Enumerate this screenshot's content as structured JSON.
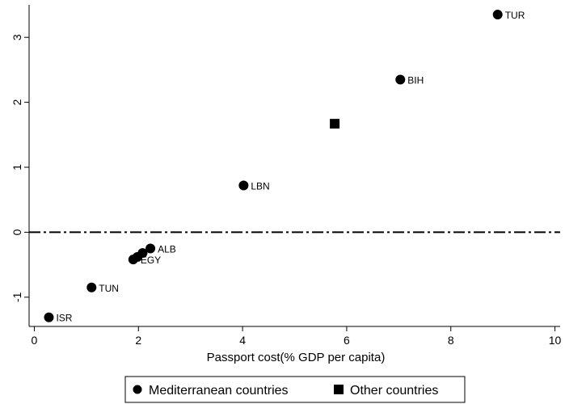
{
  "chart_data": {
    "type": "scatter",
    "xlabel": "Passport cost(% GDP per capita)",
    "ylabel": "",
    "xlim": [
      -0.1,
      10.1
    ],
    "ylim": [
      -1.45,
      3.5
    ],
    "xticks": [
      0,
      2,
      4,
      6,
      8,
      10
    ],
    "yticks": [
      -1,
      0,
      1,
      2,
      3
    ],
    "reference_line": {
      "y": 0,
      "style": "dash-dot"
    },
    "legend": {
      "placement": "bottom",
      "entries": [
        "Mediterranean countries",
        "Other countries"
      ]
    },
    "series": [
      {
        "name": "Mediterranean countries",
        "marker": "circle",
        "points": [
          {
            "label": "TUR",
            "x": 8.9,
            "y": 3.35
          },
          {
            "label": "BIH",
            "x": 7.03,
            "y": 2.35
          },
          {
            "label": "LBN",
            "x": 4.02,
            "y": 0.72
          },
          {
            "label": "ALB",
            "x": 2.23,
            "y": -0.25
          },
          {
            "label": "",
            "x": 2.08,
            "y": -0.32
          },
          {
            "label": "",
            "x": 1.98,
            "y": -0.38
          },
          {
            "label": "EGY",
            "x": 1.9,
            "y": -0.42
          },
          {
            "label": "TUN",
            "x": 1.1,
            "y": -0.85
          },
          {
            "label": "ISR",
            "x": 0.28,
            "y": -1.31
          }
        ]
      },
      {
        "name": "Other countries",
        "marker": "square",
        "points": [
          {
            "label": "",
            "x": 5.77,
            "y": 1.67
          }
        ]
      }
    ]
  }
}
